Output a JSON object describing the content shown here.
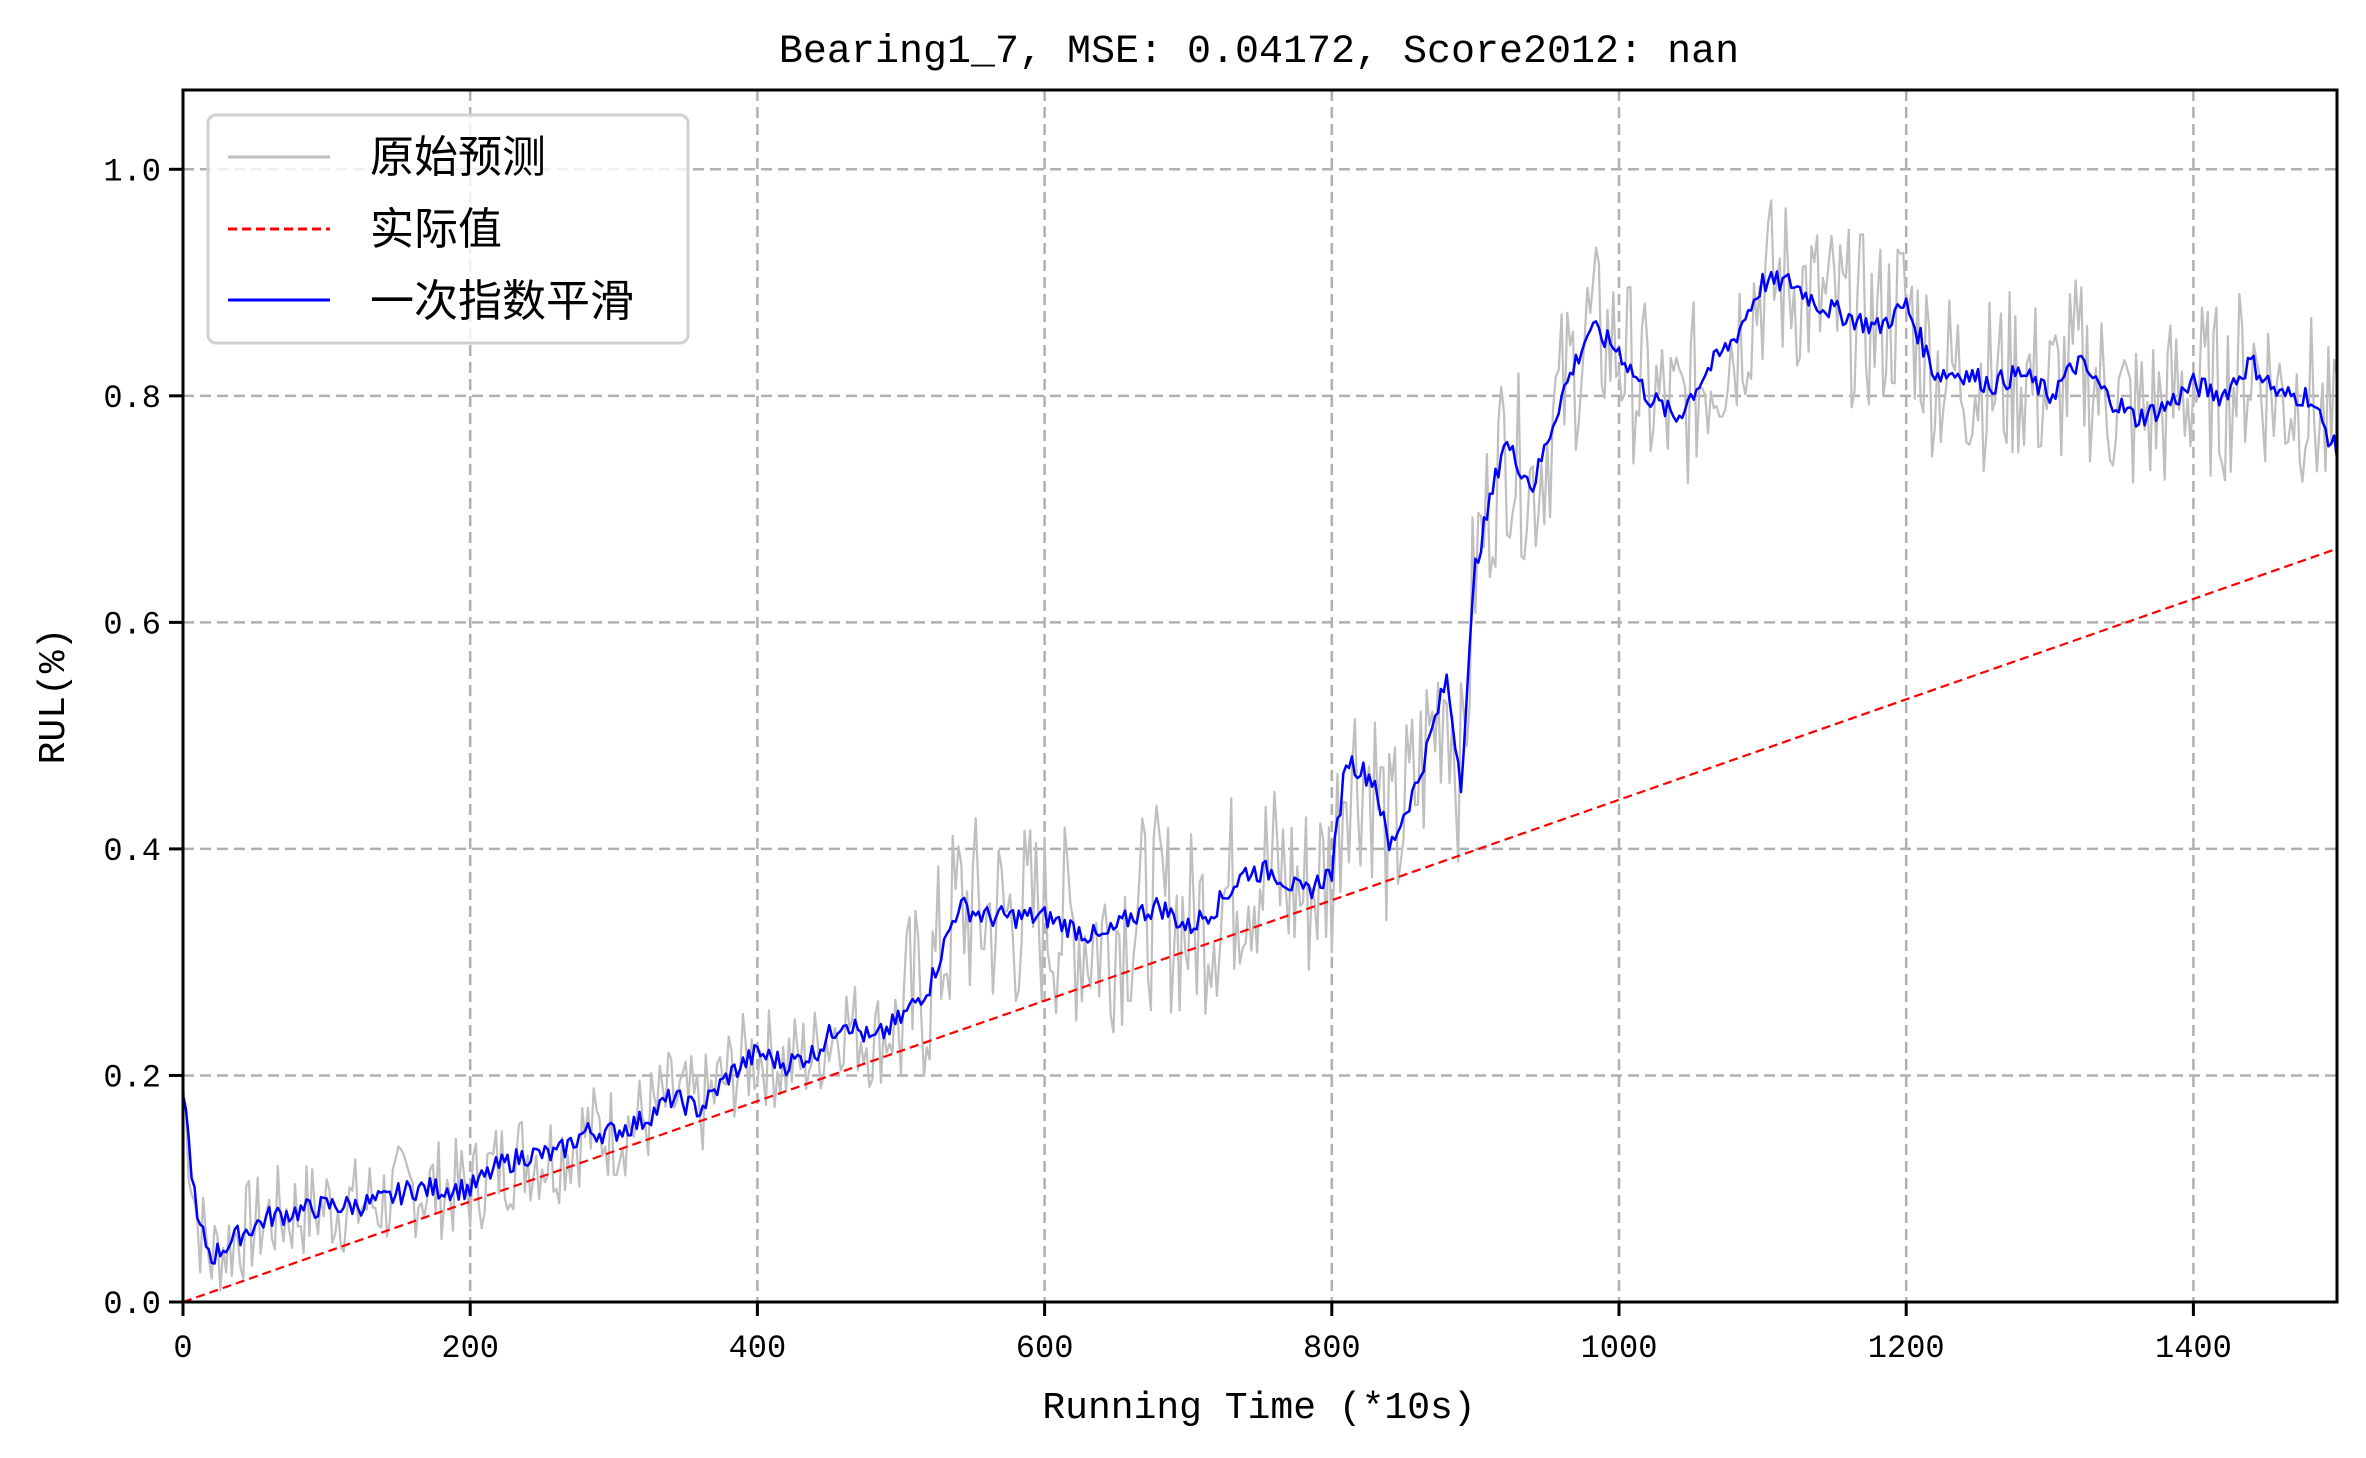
{
  "chart_data": {
    "type": "line",
    "title": "Bearing1_7, MSE: 0.04172, Score2012: nan",
    "xlabel": "Running Time (*10s)",
    "ylabel": "RUL(%)",
    "xlim": [
      0,
      1500
    ],
    "ylim": [
      0,
      1.07
    ],
    "xticks": [
      0,
      200,
      400,
      600,
      800,
      1000,
      1200,
      1400
    ],
    "xtick_labels": [
      "0",
      "200",
      "400",
      "600",
      "800",
      "1000",
      "1200",
      "1400"
    ],
    "yticks": [
      0.0,
      0.2,
      0.4,
      0.6,
      0.8,
      1.0
    ],
    "ytick_labels": [
      "0.0",
      "0.2",
      "0.4",
      "0.6",
      "0.8",
      "1.0"
    ],
    "grid": true,
    "legend_position": "upper left",
    "series": [
      {
        "name": "原始预测",
        "color": "#bfbfbf",
        "style": "solid",
        "note": "noisy raw prediction fluctuating around the smoothed curve",
        "x": [
          0,
          10,
          20,
          40,
          60,
          80,
          100,
          120,
          140,
          160,
          180,
          200,
          220,
          240,
          260,
          280,
          300,
          320,
          340,
          360,
          380,
          400,
          420,
          440,
          460,
          480,
          500,
          520,
          540,
          560,
          580,
          600,
          620,
          640,
          660,
          680,
          700,
          720,
          740,
          760,
          780,
          800,
          810,
          830,
          840,
          860,
          880,
          890,
          900,
          920,
          940,
          960,
          980,
          1000,
          1020,
          1040,
          1060,
          1080,
          1100,
          1120,
          1140,
          1160,
          1180,
          1200,
          1220,
          1240,
          1260,
          1280,
          1300,
          1320,
          1340,
          1360,
          1380,
          1400,
          1420,
          1440,
          1460,
          1480,
          1500
        ],
        "values": [
          0.15,
          0.06,
          0.03,
          0.07,
          0.08,
          0.07,
          0.09,
          0.08,
          0.1,
          0.11,
          0.09,
          0.1,
          0.13,
          0.12,
          0.14,
          0.14,
          0.16,
          0.15,
          0.19,
          0.16,
          0.21,
          0.23,
          0.2,
          0.23,
          0.26,
          0.22,
          0.26,
          0.3,
          0.36,
          0.33,
          0.35,
          0.33,
          0.34,
          0.31,
          0.35,
          0.36,
          0.32,
          0.36,
          0.39,
          0.37,
          0.35,
          0.4,
          0.5,
          0.44,
          0.42,
          0.48,
          0.58,
          0.44,
          0.68,
          0.78,
          0.7,
          0.82,
          0.88,
          0.83,
          0.79,
          0.79,
          0.83,
          0.86,
          0.92,
          0.89,
          0.87,
          0.88,
          0.85,
          0.89,
          0.81,
          0.83,
          0.8,
          0.83,
          0.79,
          0.84,
          0.79,
          0.77,
          0.8,
          0.82,
          0.79,
          0.84,
          0.79,
          0.81,
          0.73
        ]
      },
      {
        "name": "实际值",
        "color": "#ff0000",
        "style": "dashed",
        "x": [
          0,
          1500
        ],
        "values": [
          0.0,
          0.665
        ]
      },
      {
        "name": "一次指数平滑",
        "color": "#0000ff",
        "style": "solid",
        "x": [
          0,
          10,
          20,
          40,
          60,
          80,
          100,
          120,
          140,
          160,
          180,
          200,
          220,
          240,
          260,
          280,
          300,
          320,
          340,
          360,
          380,
          400,
          420,
          440,
          460,
          480,
          500,
          520,
          540,
          560,
          580,
          600,
          620,
          640,
          660,
          680,
          700,
          720,
          740,
          760,
          780,
          800,
          810,
          830,
          840,
          860,
          880,
          890,
          900,
          920,
          940,
          960,
          980,
          1000,
          1020,
          1040,
          1060,
          1080,
          1100,
          1120,
          1140,
          1160,
          1180,
          1200,
          1220,
          1240,
          1260,
          1280,
          1300,
          1320,
          1340,
          1360,
          1380,
          1400,
          1420,
          1440,
          1460,
          1480,
          1500
        ],
        "values": [
          0.19,
          0.07,
          0.04,
          0.06,
          0.075,
          0.08,
          0.085,
          0.085,
          0.09,
          0.1,
          0.1,
          0.1,
          0.12,
          0.13,
          0.13,
          0.15,
          0.15,
          0.16,
          0.18,
          0.17,
          0.2,
          0.22,
          0.21,
          0.22,
          0.25,
          0.23,
          0.25,
          0.28,
          0.35,
          0.34,
          0.34,
          0.34,
          0.33,
          0.32,
          0.34,
          0.35,
          0.33,
          0.35,
          0.38,
          0.38,
          0.36,
          0.38,
          0.48,
          0.46,
          0.4,
          0.46,
          0.55,
          0.46,
          0.65,
          0.76,
          0.72,
          0.8,
          0.86,
          0.84,
          0.8,
          0.78,
          0.82,
          0.85,
          0.9,
          0.9,
          0.88,
          0.87,
          0.86,
          0.88,
          0.82,
          0.82,
          0.81,
          0.82,
          0.8,
          0.83,
          0.8,
          0.78,
          0.79,
          0.81,
          0.8,
          0.83,
          0.8,
          0.8,
          0.75
        ]
      }
    ]
  },
  "legend": {
    "items": [
      {
        "label": "原始预测",
        "color": "#bfbfbf",
        "style": "solid"
      },
      {
        "label": "实际值",
        "color": "#ff0000",
        "style": "dashed"
      },
      {
        "label": "一次指数平滑",
        "color": "#0000ff",
        "style": "solid"
      }
    ]
  }
}
